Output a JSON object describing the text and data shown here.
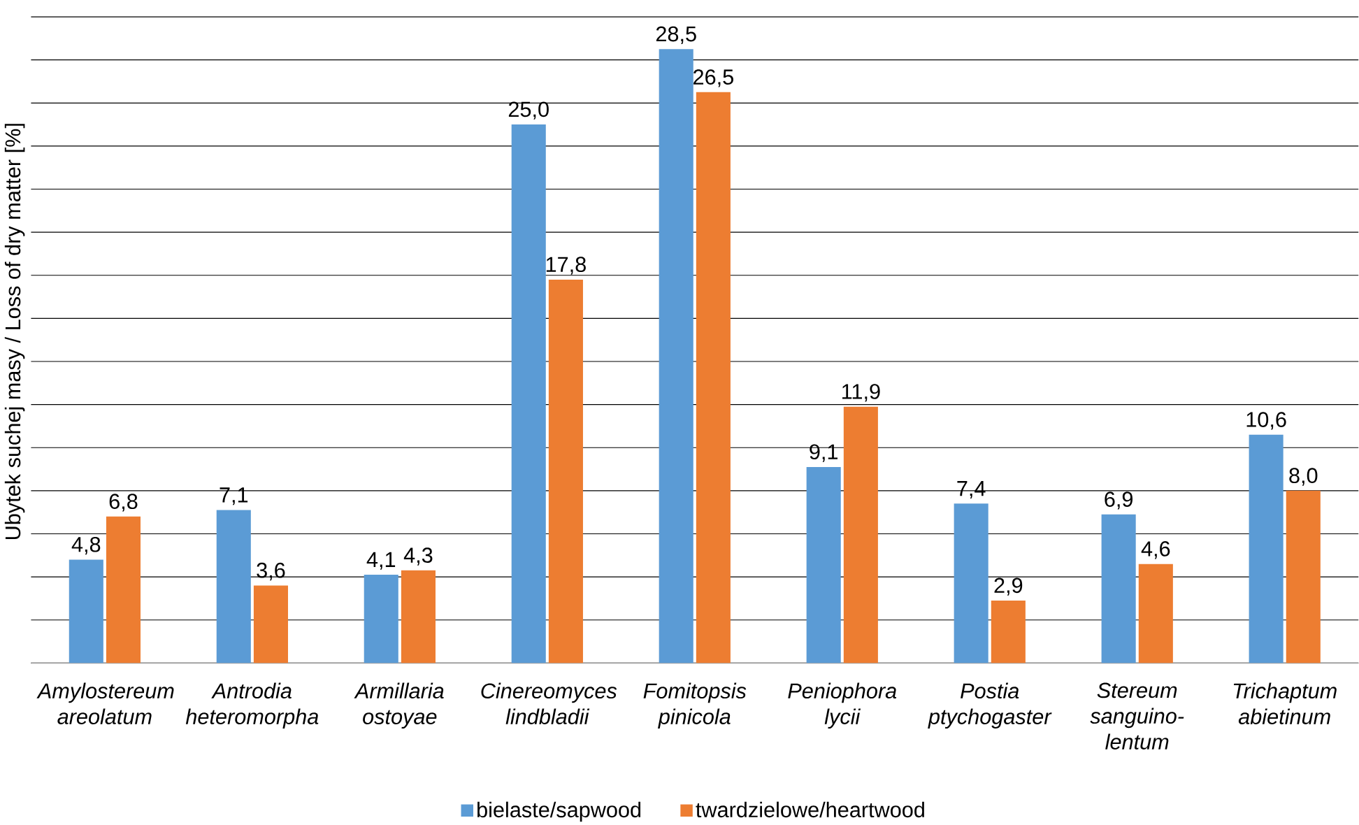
{
  "chart_data": {
    "type": "bar",
    "ylabel": "Ubytek suchej masy / Loss of dry matter [%]",
    "categories": [
      "Amylostereum areolatum",
      "Antrodia heteromorpha",
      "Armillaria ostoyae",
      "Cinereomyces lindbladii",
      "Fomitopsis pinicola",
      "Peniophora lycii",
      "Postia ptychogaster",
      "Stereum sanguino-lentum",
      "Trichaptum abietinum"
    ],
    "series": [
      {
        "name": "bielaste/sapwood",
        "color": "#5b9bd5",
        "values": [
          4.8,
          7.1,
          4.1,
          25.0,
          28.5,
          9.1,
          7.4,
          6.9,
          10.6
        ],
        "value_labels": [
          "4,8",
          "7,1",
          "4,1",
          "25,0",
          "28,5",
          "9,1",
          "7,4",
          "6,9",
          "10,6"
        ]
      },
      {
        "name": "twardzielowe/heartwood",
        "color": "#ed7d31",
        "values": [
          6.8,
          3.6,
          4.3,
          17.8,
          26.5,
          11.9,
          2.9,
          4.6,
          8.0
        ],
        "value_labels": [
          "6,8",
          "3,6",
          "4,3",
          "17,8",
          "26,5",
          "11,9",
          "2,9",
          "4,6",
          "8,0"
        ]
      }
    ],
    "tick_labels": "x",
    "grid": "y",
    "legend": "bottom"
  }
}
